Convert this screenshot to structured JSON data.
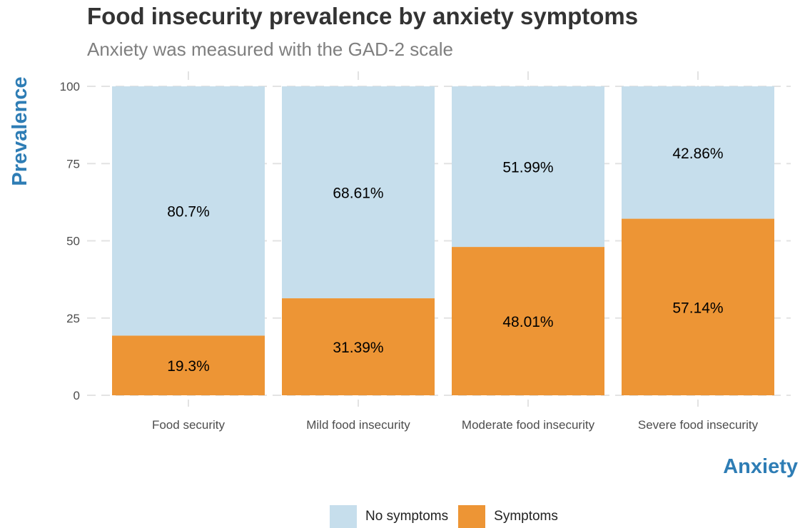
{
  "chart_data": {
    "type": "bar",
    "stacked": true,
    "title": "Food insecurity prevalence by anxiety symptoms",
    "subtitle": "Anxiety was measured with the GAD-2 scale",
    "xlabel": "Anxiety",
    "ylabel": "Prevalence",
    "ylim": [
      0,
      100
    ],
    "yticks": [
      "0",
      "25",
      "50",
      "75",
      "100"
    ],
    "categories": [
      "Food security",
      "Mild food insecurity",
      "Moderate food insecurity",
      "Severe food insecurity"
    ],
    "series": [
      {
        "name": "Symptoms",
        "color": "#ED9535",
        "values": [
          19.3,
          31.39,
          48.01,
          57.14
        ],
        "labels": [
          "19.3%",
          "31.39%",
          "48.01%",
          "57.14%"
        ]
      },
      {
        "name": "No symptoms",
        "color": "#C6DEEC",
        "values": [
          80.7,
          68.61,
          51.99,
          42.86
        ],
        "labels": [
          "80.7%",
          "68.61%",
          "51.99%",
          "42.86%"
        ]
      }
    ],
    "grid": true,
    "legend_position": "bottom",
    "axis_label_color": "#2E7DB5"
  }
}
